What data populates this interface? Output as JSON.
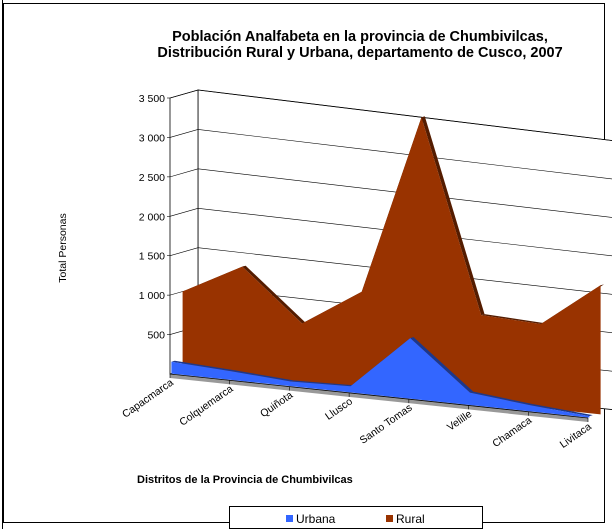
{
  "chart_data": {
    "type": "area",
    "title_line1": "Población Analfabeta en la provincia de Chumbivilcas,",
    "title_line2": "Distribución Rural y Urbana, departamento de Cusco, 2007",
    "ylabel": "Total Personas",
    "xlabel": "Distritos de la Provincia de Chumbivilcas",
    "ylim": [
      0,
      3500
    ],
    "yticks": [
      "",
      "500",
      "1 000",
      "1 500",
      "2 000",
      "2 500",
      "3 000",
      "3 500"
    ],
    "categories": [
      "Capacmarca",
      "Colquemarca",
      "Quiñota",
      "Llusco",
      "Santo Tomas",
      "Velille",
      "Chamaca",
      "Livitaca"
    ],
    "series": [
      {
        "name": "Urbana",
        "color": "#3366FF",
        "values": [
          150,
          110,
          60,
          80,
          780,
          160,
          80,
          20
        ]
      },
      {
        "name": "Rural",
        "color": "#993300",
        "values": [
          1000,
          1400,
          760,
          1250,
          3580,
          1120,
          1090,
          1680
        ]
      }
    ],
    "legend_position": "bottom",
    "grid": true
  }
}
